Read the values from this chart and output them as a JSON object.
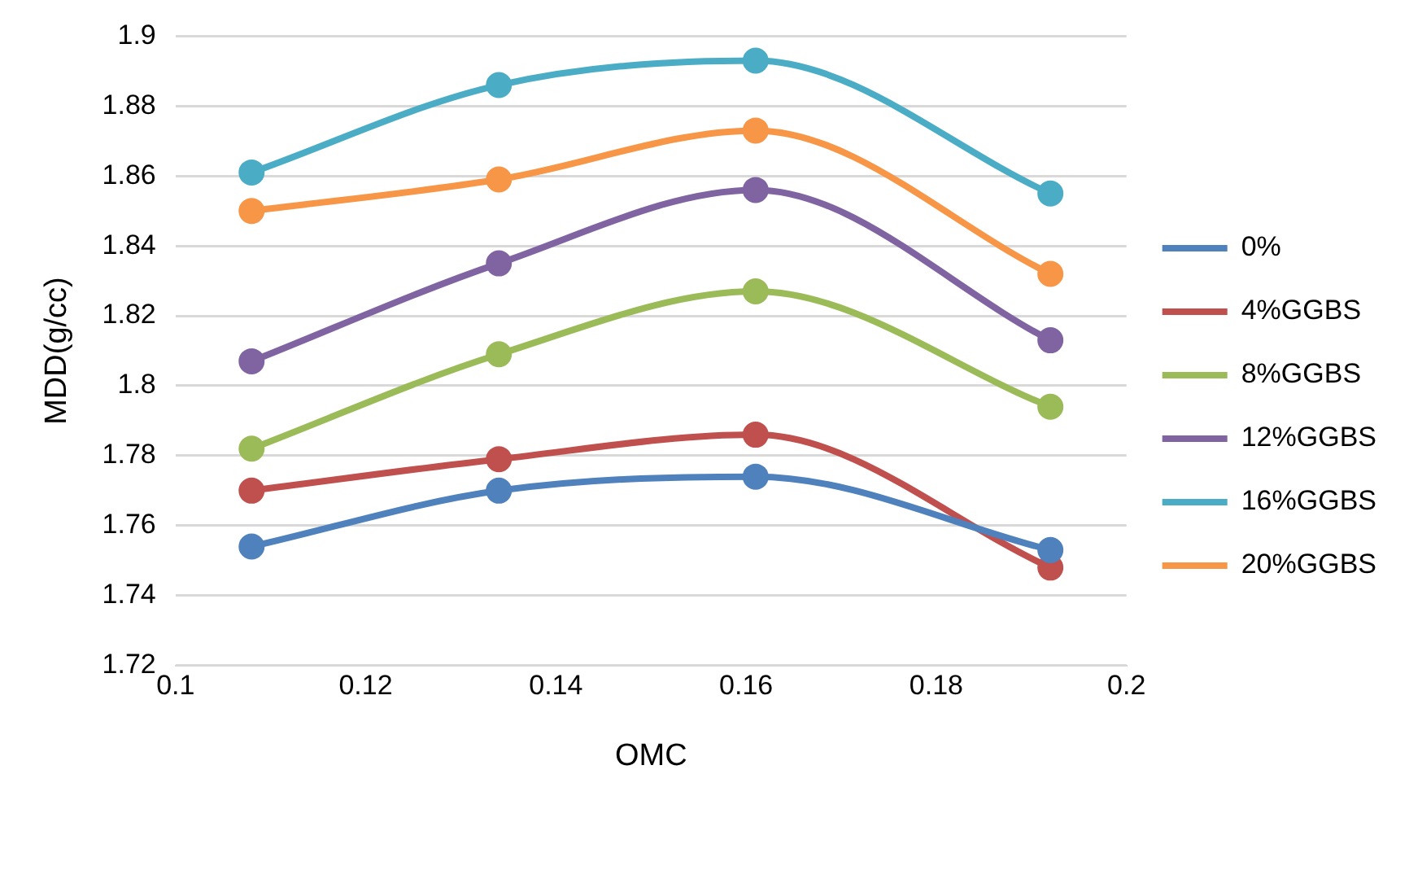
{
  "chart_data": {
    "type": "line",
    "xlabel": "OMC",
    "ylabel": "MDD(g/cc)",
    "x": [
      0.108,
      0.134,
      0.161,
      0.192
    ],
    "series": [
      {
        "name": "0%",
        "color": "#4f81bd",
        "values": [
          1.754,
          1.77,
          1.774,
          1.753
        ]
      },
      {
        "name": "4%GGBS",
        "color": "#c0504d",
        "values": [
          1.77,
          1.779,
          1.786,
          1.748
        ]
      },
      {
        "name": "8%GGBS",
        "color": "#9bbb59",
        "values": [
          1.782,
          1.809,
          1.827,
          1.794
        ]
      },
      {
        "name": "12%GGBS",
        "color": "#8064a2",
        "values": [
          1.807,
          1.835,
          1.856,
          1.813
        ]
      },
      {
        "name": "16%GGBS",
        "color": "#4bacc6",
        "values": [
          1.861,
          1.886,
          1.893,
          1.855
        ]
      },
      {
        "name": "20%GGBS",
        "color": "#f79646",
        "values": [
          1.85,
          1.859,
          1.873,
          1.832
        ]
      }
    ],
    "xlim": [
      0.1,
      0.2
    ],
    "xticks": [
      0.1,
      0.12,
      0.14,
      0.16,
      0.18,
      0.2
    ],
    "ylim": [
      1.72,
      1.9
    ],
    "yticks": [
      1.72,
      1.74,
      1.76,
      1.78,
      1.8,
      1.82,
      1.84,
      1.86,
      1.88,
      1.9
    ],
    "grid": "y",
    "legend": "right",
    "marker": "circle",
    "line_style": "solid"
  }
}
